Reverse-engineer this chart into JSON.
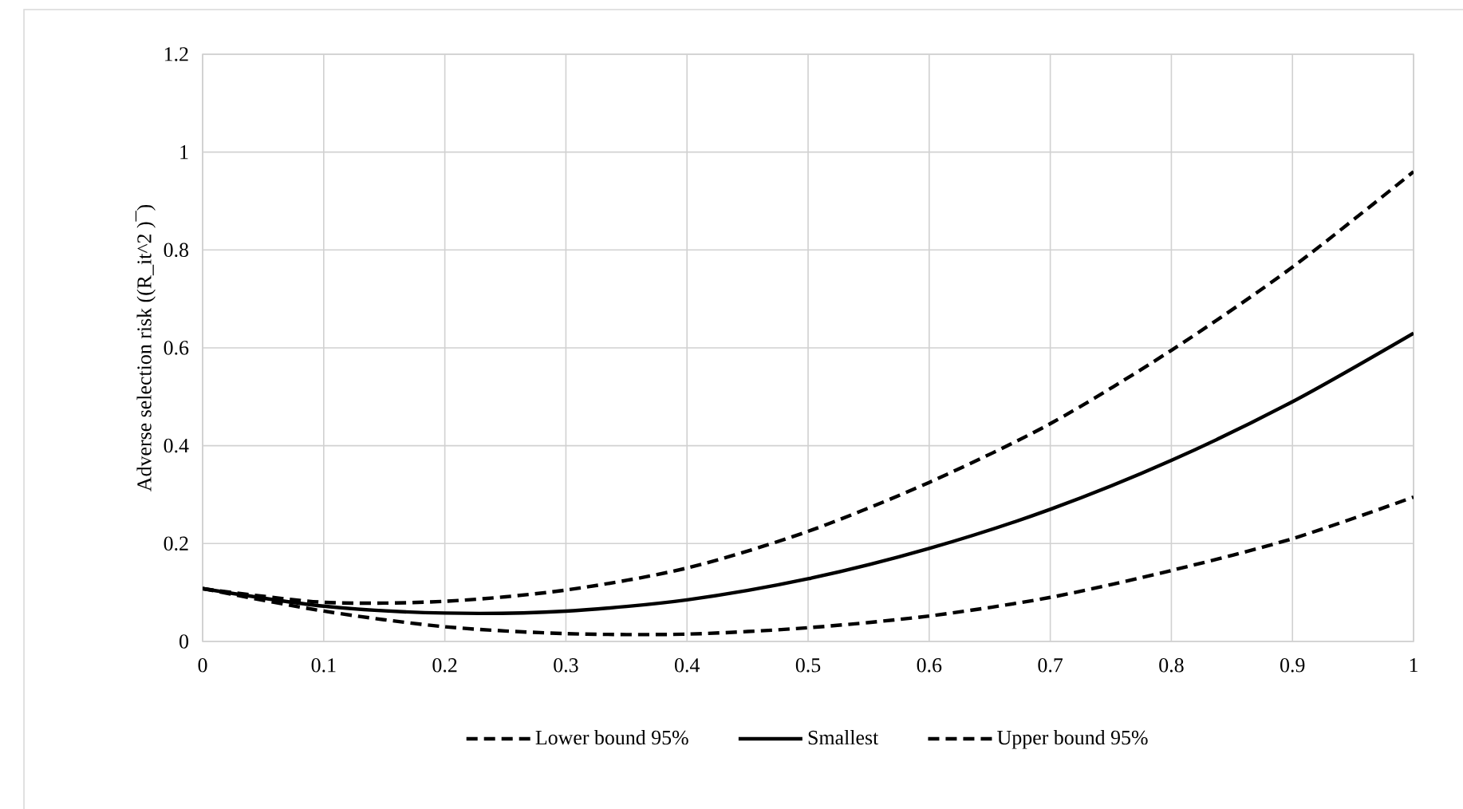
{
  "chart_data": {
    "type": "line",
    "ylabel": "Adverse selection risk ((R_it^2 )¯)",
    "x": [
      0,
      0.1,
      0.2,
      0.3,
      0.4,
      0.5,
      0.6,
      0.7,
      0.8,
      0.9,
      1
    ],
    "series": [
      {
        "name": "Lower bound 95%",
        "color": "#000000",
        "line_style": "dashed",
        "values": [
          0.108,
          0.062,
          0.03,
          0.016,
          0.015,
          0.028,
          0.052,
          0.09,
          0.145,
          0.21,
          0.295
        ]
      },
      {
        "name": "Smallest",
        "color": "#000000",
        "line_style": "solid",
        "values": [
          0.108,
          0.072,
          0.058,
          0.062,
          0.085,
          0.128,
          0.19,
          0.27,
          0.37,
          0.49,
          0.63
        ]
      },
      {
        "name": "Upper bound 95%",
        "color": "#000000",
        "line_style": "dashed",
        "values": [
          0.108,
          0.08,
          0.082,
          0.105,
          0.15,
          0.225,
          0.325,
          0.445,
          0.595,
          0.765,
          0.96
        ]
      }
    ],
    "xlim": [
      0,
      1
    ],
    "xticks": [
      0,
      0.1,
      0.2,
      0.3,
      0.4,
      0.5,
      0.6,
      0.7,
      0.8,
      0.9,
      1
    ],
    "ylim": [
      0,
      1.2
    ],
    "yticks": [
      0,
      0.2,
      0.4,
      0.6,
      0.8,
      1,
      1.2
    ],
    "grid": true,
    "legend": "bottom",
    "marker": "none"
  }
}
